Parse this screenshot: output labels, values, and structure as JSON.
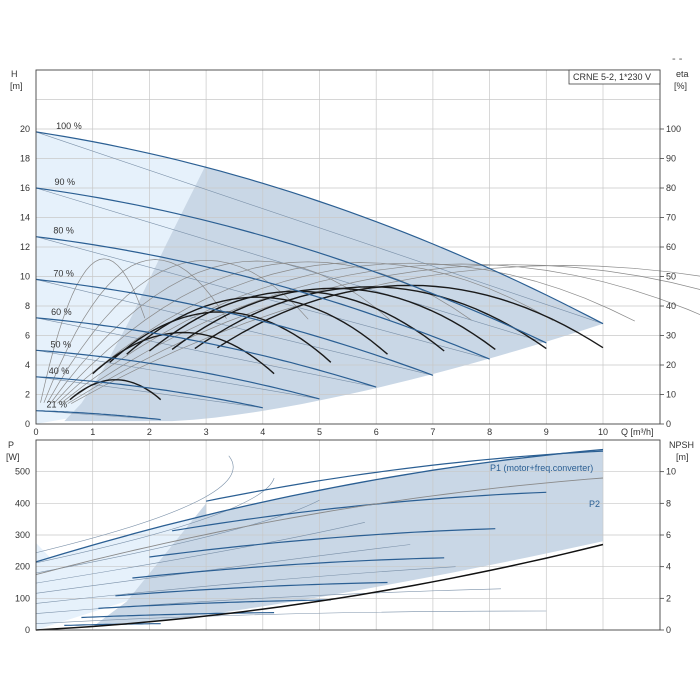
{
  "chart_data": [
    {
      "type": "line",
      "title": "CRNE 5-2, 1*230 V",
      "xlabel": "Q [m³/h]",
      "ylabel": "H\n[m]",
      "y2label": "eta\n[%]",
      "xlim": [
        0,
        10
      ],
      "ylim": [
        0,
        24
      ],
      "y2lim": [
        0,
        120
      ],
      "xticks": [
        "0",
        "1",
        "2",
        "3",
        "4",
        "5",
        "6",
        "7",
        "8",
        "9",
        "10"
      ],
      "yticks": [
        "0",
        "2",
        "4",
        "6",
        "8",
        "10",
        "12",
        "14",
        "16",
        "18",
        "20"
      ],
      "y2ticks": [
        "0",
        "10",
        "20",
        "30",
        "40",
        "50",
        "60",
        "70",
        "80",
        "90",
        "100"
      ],
      "grid": true,
      "colors": {
        "shade": "#c9d7e6",
        "light_shade": "#e6f1fb",
        "pump_curve": "#2b5f93",
        "efficiency": "#1a1a1a",
        "thin_line": "#8a8a8a"
      },
      "speed_curves": [
        {
          "label": "100 %",
          "x": [
            0,
            10
          ],
          "y": [
            19.8,
            6.8
          ]
        },
        {
          "label": "90 %",
          "x": [
            0,
            9
          ],
          "y": [
            16.0,
            5.5
          ]
        },
        {
          "label": "80 %",
          "x": [
            0,
            8
          ],
          "y": [
            12.7,
            4.4
          ]
        },
        {
          "label": "70 %",
          "x": [
            0,
            7
          ],
          "y": [
            9.8,
            3.3
          ]
        },
        {
          "label": "60 %",
          "x": [
            0,
            6
          ],
          "y": [
            7.2,
            2.5
          ]
        },
        {
          "label": "50 %",
          "x": [
            0,
            5
          ],
          "y": [
            5.0,
            1.7
          ]
        },
        {
          "label": "40 %",
          "x": [
            0,
            4
          ],
          "y": [
            3.2,
            1.1
          ]
        },
        {
          "label": "21 %",
          "x": [
            0,
            2.2
          ],
          "y": [
            0.9,
            0.3
          ]
        }
      ]
    },
    {
      "type": "line",
      "title": "",
      "xlabel": "",
      "ylabel": "P\n[W]",
      "y2label": "NPSH\n[m]",
      "xlim": [
        0,
        10
      ],
      "ylim": [
        0,
        600
      ],
      "y2lim": [
        0,
        12
      ],
      "yticks": [
        "0",
        "100",
        "200",
        "300",
        "400",
        "500"
      ],
      "y2ticks": [
        "0",
        "2",
        "4",
        "6",
        "8",
        "10"
      ],
      "grid": true,
      "series": [
        {
          "name": "P1 (motor+freq.converter)",
          "x": [
            0,
            10
          ],
          "y": [
            215,
            570
          ]
        },
        {
          "name": "P2",
          "x": [
            0,
            10
          ],
          "y": [
            175,
            480
          ]
        }
      ],
      "npsh": {
        "x": [
          0,
          10
        ],
        "y": [
          0,
          5.4
        ]
      }
    }
  ],
  "decoration": {
    "corner_mark": "- -"
  }
}
